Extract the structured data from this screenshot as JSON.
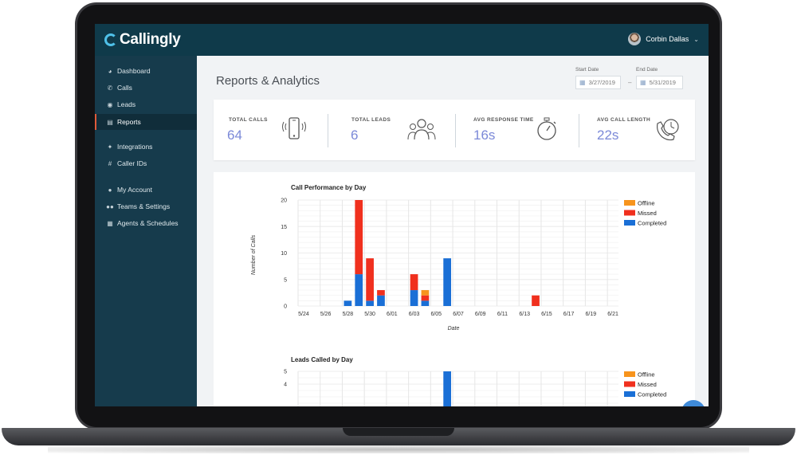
{
  "app": {
    "name": "Callingly"
  },
  "user": {
    "name": "Corbin Dallas"
  },
  "sidebar": {
    "items": [
      {
        "label": "Dashboard",
        "icon": "dashboard-icon"
      },
      {
        "label": "Calls",
        "icon": "phone-icon"
      },
      {
        "label": "Leads",
        "icon": "user-circle-icon"
      },
      {
        "label": "Reports",
        "icon": "bar-chart-icon",
        "active": true
      },
      {
        "label": "Integrations",
        "icon": "wand-icon"
      },
      {
        "label": "Caller IDs",
        "icon": "hash-icon"
      },
      {
        "label": "My Account",
        "icon": "user-icon"
      },
      {
        "label": "Teams & Settings",
        "icon": "users-icon"
      },
      {
        "label": "Agents & Schedules",
        "icon": "calendar-icon"
      }
    ]
  },
  "page": {
    "title": "Reports & Analytics",
    "start_date_label": "Start Date",
    "start_date": "3/27/2019",
    "end_date_label": "End Date",
    "end_date": "5/31/2019",
    "date_separator": "–"
  },
  "stats": [
    {
      "label": "TOTAL CALLS",
      "value": "64",
      "icon": "mobile-phone-icon"
    },
    {
      "label": "TOTAL LEADS",
      "value": "6",
      "icon": "people-group-icon"
    },
    {
      "label": "AVG RESPONSE TIME",
      "value": "16s",
      "icon": "stopwatch-icon"
    },
    {
      "label": "AVG CALL LENGTH",
      "value": "22s",
      "icon": "phone-clock-icon"
    }
  ],
  "colors": {
    "offline": "#f7941d",
    "missed": "#f0301e",
    "completed": "#1a6fd6",
    "accent": "#7b89d8",
    "sidebar": "#163b4c",
    "topbar": "#0f3a4a"
  },
  "chart_data": [
    {
      "type": "bar",
      "stacked": true,
      "title": "Call Performance by Day",
      "xlabel": "Date",
      "ylabel": "Number of Calls",
      "ylim": [
        0,
        20
      ],
      "yticks": [
        0,
        5,
        10,
        15,
        20
      ],
      "grid": true,
      "legend_position": "top-right",
      "categories": [
        "5/24",
        "5/25",
        "5/26",
        "5/27",
        "5/28",
        "5/29",
        "5/30",
        "5/31",
        "6/01",
        "6/02",
        "6/03",
        "6/04",
        "6/05",
        "6/06",
        "6/07",
        "6/08",
        "6/09",
        "6/10",
        "6/11",
        "6/12",
        "6/13",
        "6/14",
        "6/15",
        "6/16",
        "6/17",
        "6/18",
        "6/19",
        "6/20",
        "6/21"
      ],
      "tick_labels": [
        "5/24",
        "5/26",
        "5/28",
        "5/30",
        "6/01",
        "6/03",
        "6/05",
        "6/07",
        "6/09",
        "6/11",
        "6/13",
        "6/15",
        "6/17",
        "6/19",
        "6/21"
      ],
      "series": [
        {
          "name": "Completed",
          "values": [
            0,
            0,
            0,
            0,
            1,
            6,
            1,
            2,
            0,
            0,
            3,
            1,
            0,
            9,
            0,
            0,
            0,
            0,
            0,
            0,
            0,
            0,
            0,
            0,
            0,
            0,
            0,
            0,
            0
          ]
        },
        {
          "name": "Missed",
          "values": [
            0,
            0,
            0,
            0,
            0,
            14,
            8,
            1,
            0,
            0,
            3,
            1,
            0,
            0,
            0,
            0,
            0,
            0,
            0,
            0,
            0,
            2,
            0,
            0,
            0,
            0,
            0,
            0,
            0
          ]
        },
        {
          "name": "Offline",
          "values": [
            0,
            0,
            0,
            0,
            0,
            0,
            0,
            0,
            0,
            0,
            0,
            1,
            0,
            0,
            0,
            0,
            0,
            0,
            0,
            0,
            0,
            0,
            0,
            0,
            0,
            0,
            0,
            0,
            0
          ]
        }
      ]
    },
    {
      "type": "bar",
      "stacked": true,
      "title": "Leads Called by Day",
      "ylim": [
        0,
        5
      ],
      "yticks": [
        4,
        5
      ],
      "grid": true,
      "legend_position": "top-right",
      "categories": [
        "5/24",
        "5/25",
        "5/26",
        "5/27",
        "5/28",
        "5/29",
        "5/30",
        "5/31",
        "6/01",
        "6/02",
        "6/03",
        "6/04",
        "6/05",
        "6/06",
        "6/07",
        "6/08",
        "6/09",
        "6/10",
        "6/11",
        "6/12",
        "6/13",
        "6/14",
        "6/15",
        "6/16",
        "6/17",
        "6/18",
        "6/19",
        "6/20",
        "6/21"
      ],
      "series": [
        {
          "name": "Completed",
          "values": [
            0,
            0,
            0,
            0,
            0,
            0,
            0,
            0,
            0,
            0,
            0,
            0,
            0,
            5,
            0,
            0,
            0,
            0,
            0,
            0,
            0,
            0,
            0,
            0,
            0,
            0,
            0,
            0,
            0
          ]
        },
        {
          "name": "Missed",
          "values": [
            0,
            0,
            0,
            0,
            0,
            0,
            0,
            0,
            0,
            0,
            0,
            0,
            0,
            0,
            0,
            0,
            0,
            0,
            0,
            0,
            0,
            0,
            0,
            0,
            0,
            0,
            0,
            0,
            0
          ]
        },
        {
          "name": "Offline",
          "values": [
            0,
            0,
            0,
            0,
            0,
            0,
            0,
            0,
            0,
            0,
            0,
            0,
            0,
            0,
            0,
            0,
            0,
            0,
            0,
            0,
            0,
            0,
            0,
            0,
            0,
            0,
            0,
            0,
            0
          ]
        }
      ]
    }
  ]
}
